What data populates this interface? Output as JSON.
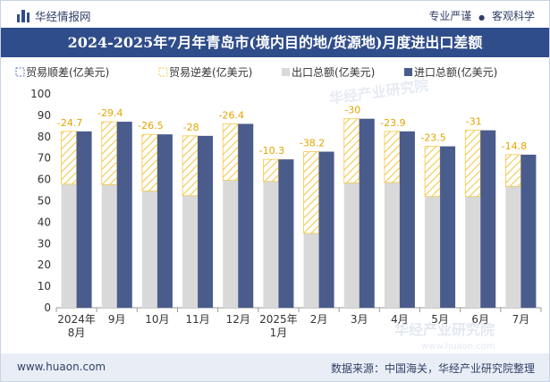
{
  "header": {
    "brand": "华经情报网",
    "tag1": "专业严谨",
    "dot": "●",
    "tag2": "客观科学"
  },
  "title": "2024-2025年7月年青岛市(境内目的地/货源地)月度进出口差额",
  "footer": {
    "website": "www.huaon.com",
    "source": "数据来源：中国海关，华经产业研究院整理"
  },
  "watermark": "华经产业研究院",
  "watermark_url": "www.huaon.com",
  "colors": {
    "export": "#d9d9d9",
    "import": "#4a5c8c",
    "deficit_stripe": "#f2c84b",
    "surplus": "#5a6fa3",
    "title_bg": "#2f4d8a"
  },
  "chart_data": {
    "type": "bar",
    "title": "2024-2025年7月年青岛市(境内目的地/货源地)月度进出口差额",
    "categories": [
      "2024年\n8月",
      "9月",
      "10月",
      "11月",
      "12月",
      "2025年\n1月",
      "2月",
      "3月",
      "4月",
      "5月",
      "6月",
      "7月"
    ],
    "ylim": [
      0,
      100
    ],
    "yticks": [
      0,
      10,
      20,
      30,
      40,
      50,
      60,
      70,
      80,
      90,
      100
    ],
    "legend_position": "top-left",
    "series": [
      {
        "name": "贸易顺差(亿美元)",
        "values": [
          0,
          0,
          0,
          0,
          0,
          0,
          0,
          0,
          0,
          0,
          0,
          0
        ]
      },
      {
        "name": "贸易逆差(亿美元)",
        "values": [
          -24.7,
          -29.4,
          -26.5,
          -28,
          -26.4,
          -10.3,
          -38.2,
          -30,
          -23.9,
          -23.5,
          -31,
          -14.8
        ]
      },
      {
        "name": "出口总额(亿美元)",
        "values": [
          57.8,
          57.6,
          54.6,
          52.4,
          59.6,
          59.1,
          34.8,
          58.4,
          58.6,
          52.0,
          52.0,
          56.8
        ]
      },
      {
        "name": "进口总额(亿美元)",
        "values": [
          82.5,
          87.0,
          81.1,
          80.4,
          86.0,
          69.4,
          73.0,
          88.4,
          82.5,
          75.5,
          83.0,
          71.6
        ]
      }
    ],
    "data_labels": [
      "-24.7",
      "-29.4",
      "-26.5",
      "-28",
      "-26.4",
      "-10.3",
      "-38.2",
      "-30",
      "-23.9",
      "-23.5",
      "-31",
      "-14.8"
    ]
  }
}
